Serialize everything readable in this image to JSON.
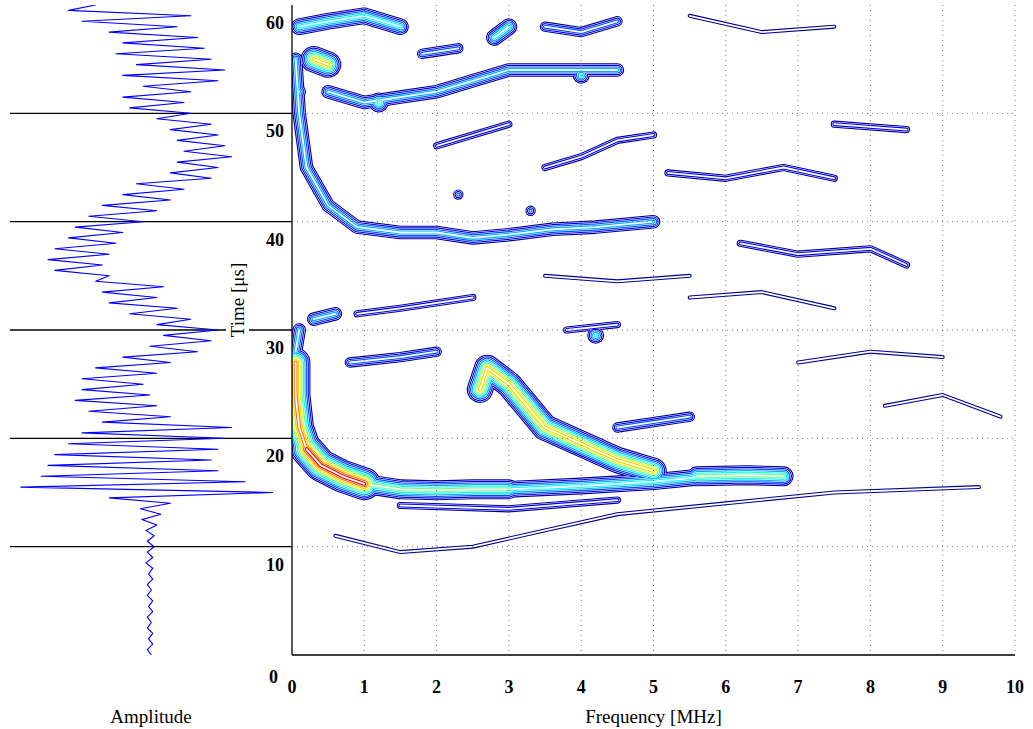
{
  "chart_data": [
    {
      "type": "line",
      "xlabel": "Time [μs]",
      "ylabel": "Amplitude",
      "color": "#0000ff",
      "xlim": [
        0,
        60
      ],
      "xticks": [
        0,
        10,
        20,
        30,
        40,
        50,
        60
      ],
      "ylim": [
        -1,
        1
      ],
      "tick_labels": "x",
      "x": [
        0,
        0.5,
        1,
        1.5,
        2,
        2.5,
        3,
        3.5,
        4,
        4.5,
        5,
        5.5,
        6,
        6.5,
        7,
        7.5,
        8,
        8.5,
        9,
        9.5,
        10,
        10.5,
        11,
        11.5,
        12,
        12.5,
        13,
        13.5,
        14,
        14.5,
        15,
        15.5,
        16,
        16.5,
        17,
        17.5,
        18,
        18.5,
        19,
        19.5,
        20,
        20.5,
        21,
        21.5,
        22,
        22.5,
        23,
        23.5,
        24,
        24.5,
        25,
        25.5,
        26,
        26.5,
        27,
        27.5,
        28,
        28.5,
        29,
        29.5,
        30,
        30.5,
        31,
        31.5,
        32,
        32.5,
        33,
        33.5,
        34,
        34.5,
        35,
        35.5,
        36,
        36.5,
        37,
        37.5,
        38,
        38.5,
        39,
        39.5,
        40,
        40.5,
        41,
        41.5,
        42,
        42.5,
        43,
        43.5,
        44,
        44.5,
        45,
        45.5,
        46,
        46.5,
        47,
        47.5,
        48,
        48.5,
        49,
        49.5,
        50,
        50.5,
        51,
        51.5,
        52,
        52.5,
        53,
        53.5,
        54,
        54.5,
        55,
        55.5,
        56,
        56.5,
        57,
        57.5,
        58,
        58.5,
        59,
        59.5,
        60
      ],
      "values": [
        0.01,
        -0.02,
        0.02,
        -0.01,
        0.02,
        -0.02,
        0.01,
        -0.02,
        0.02,
        -0.01,
        0.02,
        -0.02,
        0.01,
        -0.02,
        0.02,
        -0.01,
        0.02,
        -0.03,
        0.02,
        -0.02,
        0.03,
        -0.02,
        0.03,
        -0.03,
        0.05,
        -0.06,
        0.08,
        -0.07,
        0.15,
        -0.3,
        0.9,
        -0.95,
        0.7,
        -0.8,
        0.5,
        -0.75,
        0.45,
        -0.7,
        0.5,
        -0.6,
        0.55,
        -0.5,
        0.6,
        -0.35,
        0.15,
        -0.45,
        0.05,
        -0.55,
        0.0,
        -0.5,
        -0.05,
        -0.5,
        0.05,
        -0.4,
        0.15,
        -0.2,
        0.35,
        0.0,
        0.45,
        0.1,
        0.5,
        0.05,
        0.3,
        -0.15,
        0.2,
        -0.3,
        0.05,
        -0.35,
        0.1,
        -0.4,
        -0.3,
        -0.7,
        -0.35,
        -0.75,
        -0.3,
        -0.7,
        -0.25,
        -0.6,
        -0.2,
        -0.55,
        -0.05,
        -0.45,
        0.05,
        -0.35,
        0.15,
        -0.2,
        0.25,
        -0.1,
        0.45,
        0.15,
        0.5,
        0.2,
        0.6,
        0.25,
        0.55,
        0.2,
        0.5,
        0.15,
        0.45,
        0.05,
        0.3,
        -0.15,
        0.25,
        -0.2,
        0.3,
        -0.05,
        0.5,
        -0.2,
        0.55,
        -0.1,
        0.45,
        -0.25,
        0.4,
        -0.2,
        0.35,
        -0.3,
        0.2,
        -0.5,
        0.3,
        -0.6,
        -0.4
      ]
    },
    {
      "type": "contour",
      "xlabel": "Frequency [MHz]",
      "xlim": [
        0,
        10
      ],
      "xticks": [
        0,
        1,
        2,
        3,
        4,
        5,
        6,
        7,
        8,
        9,
        10
      ],
      "ylim": [
        0,
        60
      ],
      "grid": true,
      "ridges": [
        {
          "level": 1,
          "points": [
            [
              0.6,
              11
            ],
            [
              1.5,
              9.5
            ],
            [
              2.5,
              10
            ],
            [
              3.5,
              11.5
            ],
            [
              4.5,
              13
            ],
            [
              6,
              14
            ],
            [
              7.5,
              15
            ],
            [
              9.5,
              15.5
            ]
          ]
        },
        {
          "level": 1,
          "points": [
            [
              5.5,
              33
            ],
            [
              6.5,
              33.5
            ],
            [
              7.5,
              32
            ]
          ]
        },
        {
          "level": 1,
          "points": [
            [
              8.2,
              23
            ],
            [
              9,
              24
            ],
            [
              9.8,
              22
            ]
          ]
        },
        {
          "level": 1,
          "points": [
            [
              7,
              27
            ],
            [
              8,
              28
            ],
            [
              9,
              27.5
            ]
          ]
        },
        {
          "level": 1,
          "points": [
            [
              5.5,
              59
            ],
            [
              6.5,
              57.5
            ],
            [
              7.5,
              58
            ]
          ]
        },
        {
          "level": 1,
          "points": [
            [
              3.5,
              35
            ],
            [
              4.5,
              34.5
            ],
            [
              5.5,
              35
            ]
          ]
        },
        {
          "level": 2,
          "points": [
            [
              5.2,
              44.5
            ],
            [
              6,
              44
            ],
            [
              6.8,
              45
            ],
            [
              7.5,
              44
            ]
          ]
        },
        {
          "level": 2,
          "points": [
            [
              6.2,
              38
            ],
            [
              7,
              37
            ],
            [
              8,
              37.5
            ],
            [
              8.5,
              36
            ]
          ]
        },
        {
          "level": 2,
          "points": [
            [
              7.5,
              49
            ],
            [
              8.5,
              48.5
            ]
          ]
        },
        {
          "level": 2,
          "points": [
            [
              3.5,
              45
            ],
            [
              4,
              46
            ],
            [
              4.5,
              47.5
            ],
            [
              5,
              48
            ]
          ]
        },
        {
          "level": 2,
          "points": [
            [
              2,
              47
            ],
            [
              2.5,
              48
            ],
            [
              3,
              49
            ]
          ]
        },
        {
          "level": 2,
          "points": [
            [
              0.9,
              31.5
            ],
            [
              1.5,
              32
            ],
            [
              2.5,
              33
            ]
          ]
        },
        {
          "level": 2,
          "points": [
            [
              3.8,
              30
            ],
            [
              4.5,
              30.5
            ]
          ]
        },
        {
          "level": 2,
          "points": [
            [
              1.5,
              13.8
            ],
            [
              3,
              13.5
            ],
            [
              4.5,
              14.3
            ]
          ]
        },
        {
          "level": 3,
          "points": [
            [
              3.5,
              58
            ],
            [
              4,
              57.5
            ],
            [
              4.5,
              58.5
            ]
          ]
        },
        {
          "level": 3,
          "points": [
            [
              1.8,
              55.5
            ],
            [
              2.3,
              56
            ]
          ]
        },
        {
          "level": 3,
          "points": [
            [
              2.3,
              42.5
            ]
          ]
        },
        {
          "level": 3,
          "points": [
            [
              3.3,
              41
            ]
          ]
        },
        {
          "level": 3,
          "points": [
            [
              0.8,
              27
            ],
            [
              1.5,
              27.5
            ],
            [
              2,
              28
            ]
          ]
        },
        {
          "level": 3,
          "points": [
            [
              4.5,
              21
            ],
            [
              5,
              21.5
            ],
            [
              5.5,
              22
            ]
          ]
        },
        {
          "level": 4,
          "points": [
            [
              0.1,
              30
            ],
            [
              0.05,
              28
            ]
          ]
        },
        {
          "level": 4,
          "points": [
            [
              0.3,
              31
            ],
            [
              0.6,
              31.5
            ]
          ]
        },
        {
          "level": 4,
          "points": [
            [
              0.1,
              52
            ]
          ]
        },
        {
          "level": 4,
          "points": [
            [
              0.5,
              52
            ],
            [
              1,
              51
            ],
            [
              1.5,
              51.5
            ],
            [
              2,
              52
            ],
            [
              2.5,
              53
            ],
            [
              3,
              54
            ],
            [
              3.5,
              54
            ],
            [
              4,
              54
            ],
            [
              4.5,
              54
            ]
          ]
        },
        {
          "level": 4,
          "points": [
            [
              0.05,
              55
            ],
            [
              0.1,
              50
            ],
            [
              0.2,
              45
            ],
            [
              0.5,
              41.5
            ],
            [
              0.9,
              39.5
            ],
            [
              1.5,
              39
            ],
            [
              2,
              39
            ],
            [
              2.5,
              38.5
            ],
            [
              3,
              38.8
            ],
            [
              3.6,
              39.3
            ],
            [
              4.2,
              39.5
            ],
            [
              5,
              40
            ]
          ]
        },
        {
          "level": 5,
          "points": [
            [
              0.1,
              58
            ],
            [
              0.5,
              58.5
            ],
            [
              1,
              59
            ],
            [
              1.5,
              58
            ]
          ]
        },
        {
          "level": 5,
          "points": [
            [
              2.8,
              57
            ],
            [
              3,
              58
            ]
          ]
        },
        {
          "level": 5,
          "points": [
            [
              4.2,
              29.5
            ]
          ]
        },
        {
          "level": 5,
          "points": [
            [
              4,
              53.5
            ]
          ]
        },
        {
          "level": 5,
          "points": [
            [
              3,
              15.3
            ],
            [
              4,
              15.6
            ],
            [
              5,
              16
            ],
            [
              5.6,
              16.4
            ]
          ]
        },
        {
          "level": 6,
          "points": [
            [
              1.2,
              51
            ]
          ]
        },
        {
          "level": 6,
          "points": [
            [
              1,
              15.8
            ],
            [
              1.5,
              15.3
            ],
            [
              2,
              15.2
            ],
            [
              2.5,
              15.3
            ],
            [
              3,
              15.3
            ]
          ]
        },
        {
          "level": 6,
          "points": [
            [
              5.6,
              16.5
            ],
            [
              6.3,
              16.6
            ],
            [
              6.8,
              16.5
            ]
          ]
        },
        {
          "level": 8,
          "points": [
            [
              0.3,
              55
            ],
            [
              0.5,
              54.5
            ]
          ]
        },
        {
          "level": 8,
          "points": [
            [
              2.6,
              24.5
            ],
            [
              2.7,
              26.5
            ],
            [
              3,
              25
            ],
            [
              3.5,
              21
            ],
            [
              4,
              19.5
            ],
            [
              4.5,
              18
            ],
            [
              5,
              17
            ]
          ]
        },
        {
          "level": 9,
          "points": [
            [
              0.05,
              27
            ],
            [
              0.05,
              24
            ],
            [
              0.1,
              21
            ],
            [
              0.2,
              19
            ]
          ]
        },
        {
          "level": 10,
          "points": [
            [
              0.2,
              19
            ],
            [
              0.4,
              17.5
            ],
            [
              0.7,
              16.5
            ],
            [
              1,
              15.8
            ]
          ]
        }
      ]
    }
  ]
}
